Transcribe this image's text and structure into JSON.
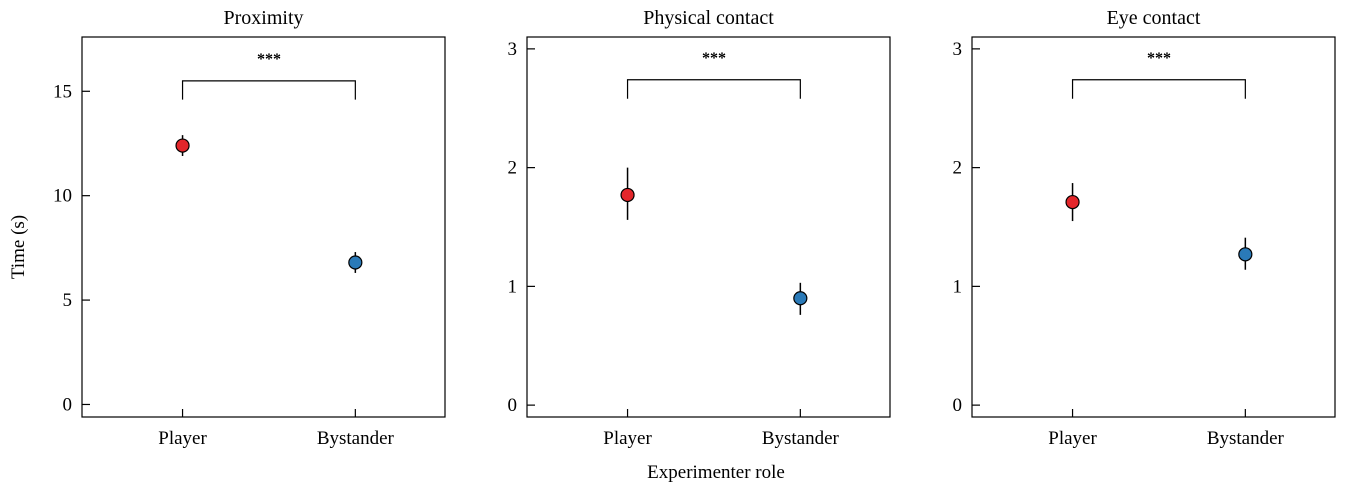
{
  "figure": {
    "ylabel": "Time (s)",
    "xlabel": "Experimenter role"
  },
  "colors": {
    "player": "#e3262b",
    "bystander": "#2a7ab8",
    "axis": "#000000"
  },
  "chart_data": [
    {
      "type": "scatter",
      "title": "Proximity",
      "categories": [
        "Player",
        "Bystander"
      ],
      "ylim": [
        -0.6,
        17.6
      ],
      "yticks": [
        0,
        5,
        10,
        15
      ],
      "points": [
        {
          "category": "Player",
          "value": 12.4,
          "err_low": 11.9,
          "err_high": 12.9,
          "color": "#e3262b"
        },
        {
          "category": "Bystander",
          "value": 6.8,
          "err_low": 6.3,
          "err_high": 7.3,
          "color": "#2a7ab8"
        }
      ],
      "significance": {
        "label": "***",
        "bracket_y": 15.5,
        "left_drop": 14.6,
        "right_drop": 14.6
      }
    },
    {
      "type": "scatter",
      "title": "Physical contact",
      "categories": [
        "Player",
        "Bystander"
      ],
      "ylim": [
        -0.1,
        3.1
      ],
      "yticks": [
        0,
        1,
        2,
        3
      ],
      "points": [
        {
          "category": "Player",
          "value": 1.77,
          "err_low": 1.56,
          "err_high": 2.0,
          "color": "#e3262b"
        },
        {
          "category": "Bystander",
          "value": 0.9,
          "err_low": 0.76,
          "err_high": 1.03,
          "color": "#2a7ab8"
        }
      ],
      "significance": {
        "label": "***",
        "bracket_y": 2.74,
        "left_drop": 2.58,
        "right_drop": 2.58
      }
    },
    {
      "type": "scatter",
      "title": "Eye contact",
      "categories": [
        "Player",
        "Bystander"
      ],
      "ylim": [
        -0.1,
        3.1
      ],
      "yticks": [
        0,
        1,
        2,
        3
      ],
      "points": [
        {
          "category": "Player",
          "value": 1.71,
          "err_low": 1.55,
          "err_high": 1.87,
          "color": "#e3262b"
        },
        {
          "category": "Bystander",
          "value": 1.27,
          "err_low": 1.14,
          "err_high": 1.41,
          "color": "#2a7ab8"
        }
      ],
      "significance": {
        "label": "***",
        "bracket_y": 2.74,
        "left_drop": 2.58,
        "right_drop": 2.58
      }
    }
  ]
}
